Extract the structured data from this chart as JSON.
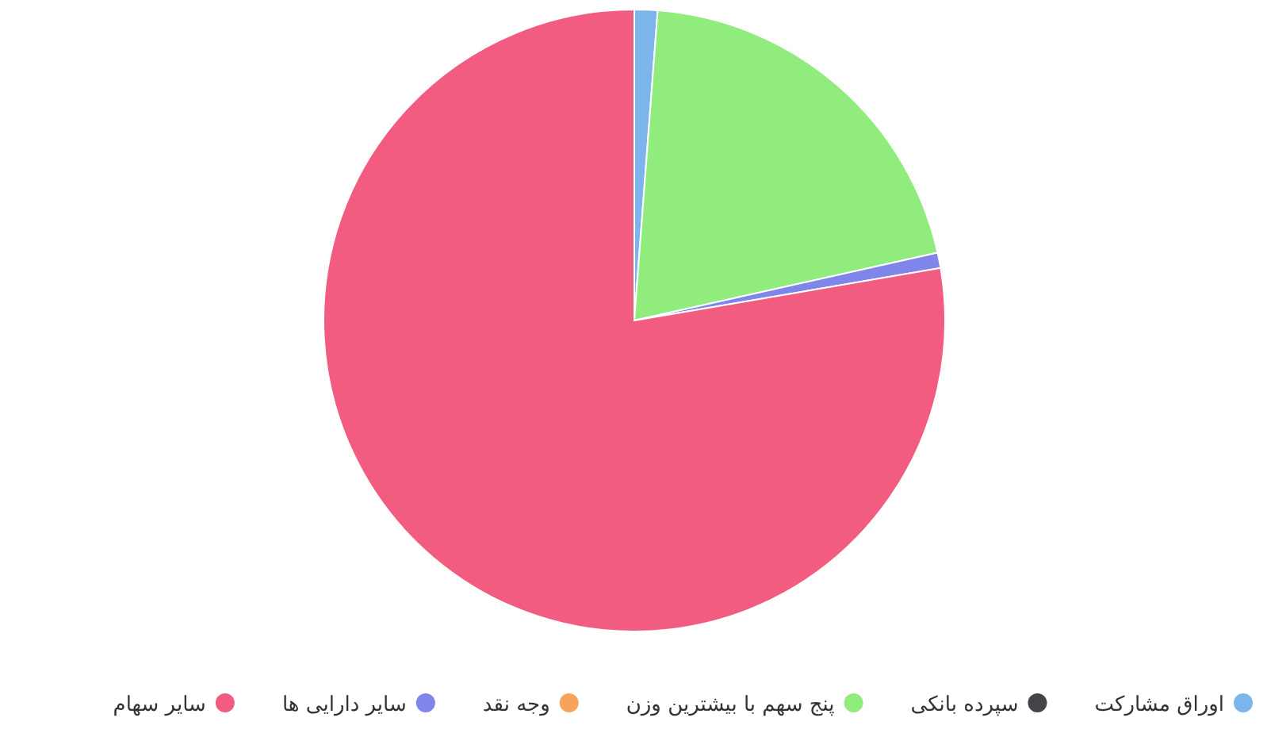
{
  "chart_data": {
    "type": "pie",
    "categories": [
      "اوراق مشارکت",
      "سپرده بانکی",
      "پنج سهم با بیشترین وزن",
      "وجه نقد",
      "سایر دارایی ها",
      "سایر سهام"
    ],
    "values": [
      1.2,
      0,
      20.3,
      0,
      0.8,
      77.7
    ],
    "colors": [
      "#7cb5ec",
      "#434348",
      "#90ed7d",
      "#f7a35c",
      "#8085e9",
      "#f15c80"
    ],
    "legend": "bottom"
  }
}
